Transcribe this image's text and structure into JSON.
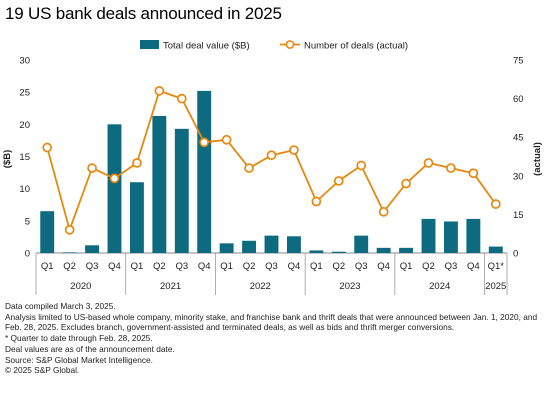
{
  "title": "19 US bank deals announced in 2025",
  "chart_data": {
    "type": "bar",
    "categories": [
      "Q1",
      "Q2",
      "Q3",
      "Q4",
      "Q1",
      "Q2",
      "Q3",
      "Q4",
      "Q1",
      "Q2",
      "Q3",
      "Q4",
      "Q1",
      "Q2",
      "Q3",
      "Q4",
      "Q1",
      "Q2",
      "Q3",
      "Q4",
      "Q1*"
    ],
    "years": [
      {
        "label": "2020",
        "start": 0,
        "end": 3
      },
      {
        "label": "2021",
        "start": 4,
        "end": 7
      },
      {
        "label": "2022",
        "start": 8,
        "end": 11
      },
      {
        "label": "2023",
        "start": 12,
        "end": 15
      },
      {
        "label": "2024",
        "start": 16,
        "end": 19
      },
      {
        "label": "2025",
        "start": 20,
        "end": 20
      }
    ],
    "series": [
      {
        "name": "Total deal value ($B)",
        "type": "bar",
        "axis": "left",
        "color": "#0e6b7f",
        "values": [
          6.5,
          0.1,
          1.2,
          20.0,
          11.0,
          21.3,
          19.3,
          25.2,
          1.5,
          1.9,
          2.7,
          2.6,
          0.4,
          0.2,
          2.7,
          0.8,
          0.8,
          5.3,
          4.9,
          5.3,
          1.0
        ]
      },
      {
        "name": "Number of deals (actual)",
        "type": "line",
        "axis": "right",
        "color": "#e8870e",
        "values": [
          41,
          9,
          33,
          29,
          35,
          63,
          60,
          43,
          44,
          33,
          38,
          40,
          20,
          28,
          34,
          16,
          27,
          35,
          33,
          31,
          19
        ]
      }
    ],
    "ylabel": "($B)",
    "y2label": "(actual)",
    "ylim": [
      0,
      30
    ],
    "y2lim": [
      0,
      75
    ],
    "yticks": [
      "0",
      "5",
      "10",
      "15",
      "20",
      "25",
      "30"
    ],
    "y2ticks": [
      "0",
      "15",
      "30",
      "45",
      "60",
      "75"
    ],
    "legend_position": "top"
  },
  "notes": [
    "Data compiled March 3, 2025.",
    "Analysis limited to US-based whole company, minority stake, and franchise bank and thrift deals that were announced between Jan. 1, 2020, and Feb. 28, 2025. Excludes branch, government-assisted and terminated deals, as well as bids and thrift merger conversions.",
    "* Quarter to date through Feb. 28, 2025.",
    "Deal values are as of the announcement date.",
    "Source: S&P Global Market Intelligence.",
    "© 2025 S&P Global."
  ]
}
